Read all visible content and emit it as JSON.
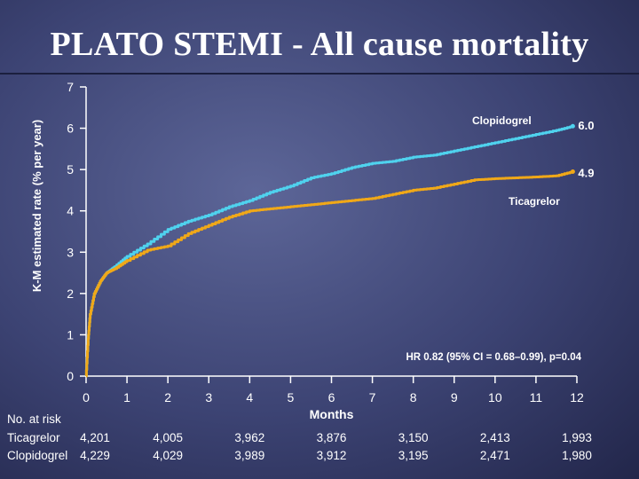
{
  "title": "PLATO STEMI - All cause mortality",
  "chart_data": {
    "type": "line",
    "ylabel": "K-M estimated rate (% per year)",
    "xlabel": "Months",
    "xlim": [
      0,
      12
    ],
    "ylim": [
      0,
      7
    ],
    "x_ticks": [
      "0",
      "1",
      "2",
      "3",
      "4",
      "5",
      "6",
      "7",
      "8",
      "9",
      "10",
      "11",
      "12"
    ],
    "y_ticks": [
      "0",
      "1",
      "2",
      "3",
      "4",
      "5",
      "6",
      "7"
    ],
    "series": [
      {
        "name": "Clopidogrel",
        "color": "#4fd2ee",
        "end_label": "6.0",
        "points": [
          [
            0,
            0
          ],
          [
            0.05,
            0.9
          ],
          [
            0.1,
            1.5
          ],
          [
            0.2,
            2.0
          ],
          [
            0.35,
            2.3
          ],
          [
            0.5,
            2.5
          ],
          [
            0.7,
            2.65
          ],
          [
            1,
            2.9
          ],
          [
            1.5,
            3.2
          ],
          [
            2,
            3.55
          ],
          [
            2.5,
            3.75
          ],
          [
            3,
            3.9
          ],
          [
            3.5,
            4.1
          ],
          [
            4,
            4.25
          ],
          [
            4.5,
            4.45
          ],
          [
            5,
            4.6
          ],
          [
            5.5,
            4.8
          ],
          [
            6,
            4.9
          ],
          [
            6.5,
            5.05
          ],
          [
            7,
            5.15
          ],
          [
            7.5,
            5.2
          ],
          [
            8,
            5.3
          ],
          [
            8.5,
            5.35
          ],
          [
            9,
            5.45
          ],
          [
            9.5,
            5.55
          ],
          [
            10,
            5.65
          ],
          [
            10.5,
            5.75
          ],
          [
            11,
            5.85
          ],
          [
            11.5,
            5.95
          ],
          [
            11.9,
            6.05
          ]
        ]
      },
      {
        "name": "Ticagrelor",
        "color": "#f0a818",
        "end_label": "4.9",
        "points": [
          [
            0,
            0
          ],
          [
            0.05,
            0.9
          ],
          [
            0.1,
            1.5
          ],
          [
            0.2,
            2.0
          ],
          [
            0.35,
            2.3
          ],
          [
            0.5,
            2.5
          ],
          [
            0.7,
            2.6
          ],
          [
            1,
            2.8
          ],
          [
            1.5,
            3.05
          ],
          [
            2,
            3.15
          ],
          [
            2.5,
            3.45
          ],
          [
            3,
            3.65
          ],
          [
            3.5,
            3.85
          ],
          [
            4,
            4.0
          ],
          [
            4.5,
            4.05
          ],
          [
            5,
            4.1
          ],
          [
            5.5,
            4.15
          ],
          [
            6,
            4.2
          ],
          [
            6.5,
            4.25
          ],
          [
            7,
            4.3
          ],
          [
            7.5,
            4.4
          ],
          [
            8,
            4.5
          ],
          [
            8.5,
            4.55
          ],
          [
            9,
            4.65
          ],
          [
            9.5,
            4.75
          ],
          [
            10,
            4.78
          ],
          [
            10.5,
            4.8
          ],
          [
            11,
            4.82
          ],
          [
            11.5,
            4.85
          ],
          [
            11.9,
            4.95
          ]
        ]
      }
    ],
    "annotations": {
      "clopidogrel_label": "Clopidogrel",
      "ticagrelor_label": "Ticagrelor",
      "hr_text": "HR 0.82 (95% CI = 0.68–0.99), p=0.04"
    }
  },
  "risk_table": {
    "header": "No. at risk",
    "rows": [
      {
        "label": "Ticagrelor",
        "values": [
          "4,201",
          "4,005",
          "3,962",
          "3,876",
          "3,150",
          "2,413",
          "1,993"
        ]
      },
      {
        "label": "Clopidogrel",
        "values": [
          "4,229",
          "4,029",
          "3,989",
          "3,912",
          "3,195",
          "2,471",
          "1,980"
        ]
      }
    ],
    "months": [
      0,
      2,
      4,
      6,
      8,
      10,
      12
    ]
  }
}
